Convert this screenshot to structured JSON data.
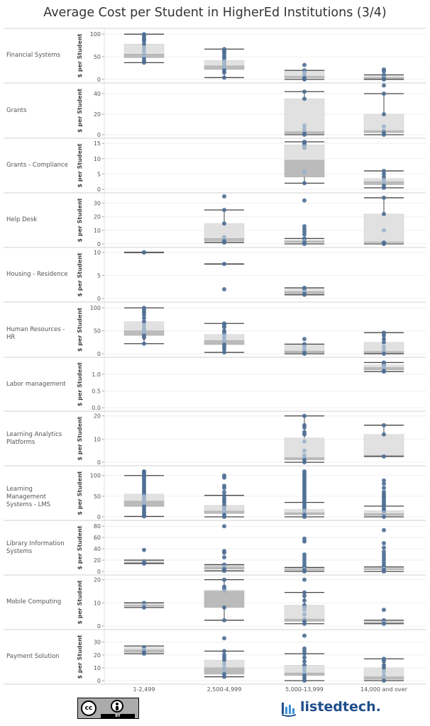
{
  "chart_data": {
    "type": "boxplot",
    "title": "Average Cost per Student in HigherEd Institutions (3/4)",
    "ylabel": "$ per Student",
    "x_categories": [
      "1-2,499",
      "2,500-4,999",
      "5,000-13,999",
      "14,000 and over"
    ],
    "colors": {
      "point_dark": "#4e6e93",
      "point_light": "#9fb3c9",
      "box_light": "#e1e1e1",
      "box_dark": "#bbbbbb",
      "whisker": "#444444"
    },
    "panels": [
      {
        "name": "Financial Systems",
        "ylim": [
          0,
          105
        ],
        "ticks": [
          0,
          50,
          100
        ],
        "tick_labels": [
          "0",
          "50",
          "100"
        ],
        "groups": [
          {
            "min": 37,
            "q1": 48,
            "median": 56,
            "q3": 78,
            "max": 100,
            "points": [
              100,
              97,
              92,
              88,
              85,
              78,
              70,
              63,
              56,
              50,
              45,
              40,
              37
            ]
          },
          {
            "min": 4,
            "q1": 22,
            "median": 30,
            "q3": 42,
            "max": 67,
            "points": [
              67,
              63,
              60,
              55,
              50,
              45,
              40,
              35,
              30,
              27,
              23,
              20,
              15,
              4
            ]
          },
          {
            "min": 0,
            "q1": 3,
            "median": 7,
            "q3": 20,
            "max": 20,
            "points": [
              32,
              20,
              15,
              10,
              6,
              3,
              1,
              0
            ]
          },
          {
            "min": 0,
            "q1": 1,
            "median": 4,
            "q3": 7,
            "max": 10,
            "points": [
              22,
              18,
              10,
              7,
              4,
              1,
              0
            ]
          }
        ]
      },
      {
        "name": "Grants",
        "ylim": [
          0,
          47
        ],
        "ticks": [
          0,
          20,
          40
        ],
        "tick_labels": [
          "0",
          "20",
          "40"
        ],
        "groups": [
          {
            "points": []
          },
          {
            "points": []
          },
          {
            "min": 0,
            "q1": 1,
            "median": 3,
            "q3": 35,
            "max": 42,
            "points": [
              42,
              35,
              9,
              6,
              3,
              1,
              0
            ]
          },
          {
            "min": 0,
            "q1": 2,
            "median": 4,
            "q3": 20,
            "max": 40,
            "points": [
              48,
              40,
              20,
              8,
              4,
              2,
              0
            ]
          }
        ]
      },
      {
        "name": "Grants - Compliance",
        "ylim": [
          0,
          15.5
        ],
        "ticks": [
          0,
          5,
          10,
          15
        ],
        "tick_labels": [
          "0",
          "5",
          "10",
          "15"
        ],
        "groups": [
          {
            "points": []
          },
          {
            "points": []
          },
          {
            "min": 2,
            "q1": 4,
            "median": 9.5,
            "q3": 14.5,
            "max": 15.5,
            "points": [
              15.5,
              15,
              14.7,
              14,
              13.5,
              6,
              5.5,
              2
            ]
          },
          {
            "min": 0.5,
            "q1": 1.5,
            "median": 2.5,
            "q3": 3.5,
            "max": 6,
            "points": [
              6,
              5,
              4,
              3,
              2,
              1.2,
              0.5
            ]
          }
        ]
      },
      {
        "name": "Help Desk",
        "ylim": [
          0,
          35
        ],
        "ticks": [
          0,
          10,
          20,
          30
        ],
        "tick_labels": [
          "0",
          "10",
          "20",
          "30"
        ],
        "groups": [
          {
            "points": []
          },
          {
            "min": 1,
            "q1": 2,
            "median": 4,
            "q3": 15,
            "max": 25,
            "points": [
              35,
              25,
              15,
              5,
              3,
              2,
              1
            ]
          },
          {
            "min": 0,
            "q1": 1,
            "median": 2,
            "q3": 3,
            "max": 4,
            "points": [
              32,
              13,
              11,
              9,
              7,
              4,
              3,
              2,
              1,
              0
            ]
          },
          {
            "min": 0,
            "q1": 1,
            "median": 1.5,
            "q3": 22,
            "max": 34,
            "points": [
              34,
              22,
              10,
              1,
              0
            ]
          }
        ]
      },
      {
        "name": "Housing - Residence",
        "ylim": [
          0,
          10.3
        ],
        "ticks": [
          0,
          5,
          10
        ],
        "tick_labels": [
          "0",
          "5",
          "10"
        ],
        "groups": [
          {
            "min": 10,
            "q1": 10,
            "median": 10,
            "q3": 10,
            "max": 10,
            "points": [
              10,
              10
            ]
          },
          {
            "min": 7.5,
            "q1": 7.5,
            "median": 7.5,
            "q3": 7.5,
            "max": 7.5,
            "points": [
              7.5,
              2
            ]
          },
          {
            "min": 0.8,
            "q1": 1,
            "median": 1.5,
            "q3": 2,
            "max": 2.3,
            "points": [
              2.3,
              2,
              1.5,
              1,
              0.8
            ]
          },
          {
            "points": []
          }
        ]
      },
      {
        "name": "Human Resources - HR",
        "ylim": [
          0,
          105
        ],
        "ticks": [
          0,
          50,
          100
        ],
        "tick_labels": [
          "0",
          "50",
          "100"
        ],
        "groups": [
          {
            "min": 22,
            "q1": 40,
            "median": 50,
            "q3": 70,
            "max": 100,
            "points": [
              100,
              95,
              90,
              85,
              78,
              70,
              62,
              55,
              50,
              45,
              40,
              35,
              22
            ]
          },
          {
            "min": 3,
            "q1": 20,
            "median": 29,
            "q3": 42,
            "max": 66,
            "points": [
              66,
              62,
              58,
              50,
              45,
              40,
              35,
              29,
              25,
              20,
              15,
              10,
              3
            ]
          },
          {
            "min": 0,
            "q1": 2,
            "median": 6,
            "q3": 21,
            "max": 21,
            "points": [
              32,
              21,
              15,
              10,
              6,
              2,
              0
            ]
          },
          {
            "min": 0,
            "q1": 1,
            "median": 5,
            "q3": 25,
            "max": 46,
            "points": [
              46,
              40,
              32,
              25,
              15,
              8,
              3,
              0
            ]
          }
        ]
      },
      {
        "name": "Labor management",
        "ylim": [
          0,
          1.4
        ],
        "ticks": [
          0,
          0.5,
          1.0
        ],
        "tick_labels": [
          "0.0",
          "0.5",
          "1.0"
        ],
        "groups": [
          {
            "points": []
          },
          {
            "points": []
          },
          {
            "points": []
          },
          {
            "min": 1.08,
            "q1": 1.13,
            "median": 1.2,
            "q3": 1.28,
            "max": 1.35,
            "points": [
              1.35,
              1.3,
              1.25,
              1.2,
              1.15,
              1.1,
              1.08
            ]
          }
        ]
      },
      {
        "name": "Learning Analytics Platforms",
        "ylim": [
          0,
          20.5
        ],
        "ticks": [
          0,
          10,
          20
        ],
        "tick_labels": [
          "0",
          "10",
          "20"
        ],
        "groups": [
          {
            "points": []
          },
          {
            "points": []
          },
          {
            "min": 0,
            "q1": 1,
            "median": 2,
            "q3": 10.5,
            "max": 20,
            "points": [
              20,
              16,
              15,
              13,
              12,
              9,
              5,
              3,
              2,
              1,
              0
            ]
          },
          {
            "min": 2.5,
            "q1": 2.5,
            "median": 3,
            "q3": 12,
            "max": 16,
            "points": [
              16,
              12,
              2.5
            ]
          }
        ]
      },
      {
        "name": "Learning Management Systems - LMS",
        "ylim": [
          0,
          115
        ],
        "ticks": [
          0,
          50,
          100
        ],
        "tick_labels": [
          "0",
          "50",
          "100"
        ],
        "groups": [
          {
            "min": 1,
            "q1": 25,
            "median": 38,
            "q3": 55,
            "max": 100,
            "points": [
              110,
              108,
              105,
              100,
              95,
              90,
              85,
              80,
              75,
              70,
              65,
              60,
              55,
              50,
              45,
              40,
              35,
              30,
              25,
              20,
              15,
              10,
              5,
              1
            ]
          },
          {
            "min": 0,
            "q1": 8,
            "median": 14,
            "q3": 28,
            "max": 52,
            "points": [
              100,
              95,
              75,
              70,
              60,
              52,
              45,
              40,
              35,
              28,
              22,
              18,
              14,
              10,
              5,
              0
            ]
          },
          {
            "min": 0,
            "q1": 5,
            "median": 10,
            "q3": 18,
            "max": 35,
            "points": [
              110,
              105,
              100,
              95,
              90,
              85,
              80,
              75,
              70,
              65,
              60,
              55,
              50,
              45,
              40,
              35,
              30,
              25,
              20,
              15,
              10,
              5,
              0
            ]
          },
          {
            "min": 0,
            "q1": 3,
            "median": 8,
            "q3": 15,
            "max": 26,
            "points": [
              88,
              80,
              70,
              60,
              55,
              50,
              45,
              40,
              35,
              30,
              26,
              20,
              15,
              10,
              5,
              0
            ]
          }
        ]
      },
      {
        "name": "Library Information Systems",
        "ylim": [
          0,
          84
        ],
        "ticks": [
          0,
          20,
          40,
          60,
          80
        ],
        "tick_labels": [
          "0",
          "20",
          "40",
          "60",
          "80"
        ],
        "groups": [
          {
            "min": 14,
            "q1": 15,
            "median": 16,
            "q3": 18,
            "max": 20,
            "points": [
              38,
              18,
              16,
              15,
              14
            ]
          },
          {
            "min": 1,
            "q1": 4,
            "median": 8,
            "q3": 12,
            "max": 12,
            "points": [
              80,
              36,
              33,
              25,
              12,
              8,
              4,
              1
            ]
          },
          {
            "min": 0,
            "q1": 2,
            "median": 4,
            "q3": 7,
            "max": 7,
            "points": [
              58,
              53,
              30,
              25,
              20,
              15,
              10,
              7,
              4,
              2,
              0
            ]
          },
          {
            "min": 0,
            "q1": 3,
            "median": 5,
            "q3": 8,
            "max": 8,
            "points": [
              73,
              50,
              42,
              35,
              30,
              25,
              20,
              15,
              10,
              8,
              5,
              3,
              0
            ]
          }
        ]
      },
      {
        "name": "Mobile Computing",
        "ylim": [
          0,
          20.5
        ],
        "ticks": [
          0,
          10,
          20
        ],
        "tick_labels": [
          "0",
          "10",
          "20"
        ],
        "groups": [
          {
            "min": 8,
            "q1": 8.5,
            "median": 9,
            "q3": 9.5,
            "max": 10,
            "points": [
              10,
              9,
              8
            ]
          },
          {
            "min": 2.5,
            "q1": 8,
            "median": 15,
            "q3": 15.5,
            "max": 20,
            "points": [
              20,
              17,
              16,
              15,
              8,
              2.5
            ]
          },
          {
            "min": 1,
            "q1": 2,
            "median": 3,
            "q3": 9,
            "max": 14.5,
            "points": [
              20,
              14.5,
              13,
              11,
              9,
              8,
              7,
              5,
              3,
              2,
              1
            ]
          },
          {
            "min": 1,
            "q1": 1.2,
            "median": 1.6,
            "q3": 2,
            "max": 2.5,
            "points": [
              7,
              2.5,
              2,
              1.5,
              1
            ]
          }
        ]
      },
      {
        "name": "Payment Solution",
        "ylim": [
          0,
          37
        ],
        "ticks": [
          0,
          10,
          20,
          30
        ],
        "tick_labels": [
          "0",
          "10",
          "20",
          "30"
        ],
        "groups": [
          {
            "min": 21,
            "q1": 22,
            "median": 24,
            "q3": 26,
            "max": 27,
            "points": [
              26,
              24,
              22,
              21
            ]
          },
          {
            "min": 3,
            "q1": 5,
            "median": 10,
            "q3": 16,
            "max": 23,
            "points": [
              33,
              23,
              20,
              18,
              16,
              13,
              10,
              8,
              6,
              5,
              3
            ]
          },
          {
            "min": 0,
            "q1": 4,
            "median": 6,
            "q3": 12,
            "max": 21,
            "points": [
              35,
              25,
              23,
              21,
              18,
              15,
              12,
              10,
              8,
              6,
              4,
              2,
              0
            ]
          },
          {
            "min": 0,
            "q1": 1,
            "median": 3,
            "q3": 10,
            "max": 17,
            "points": [
              17,
              15,
              12,
              10,
              7,
              4,
              2,
              0
            ]
          }
        ]
      }
    ]
  },
  "license": {
    "badge": "BY"
  },
  "brand": {
    "name": "listedtech."
  }
}
